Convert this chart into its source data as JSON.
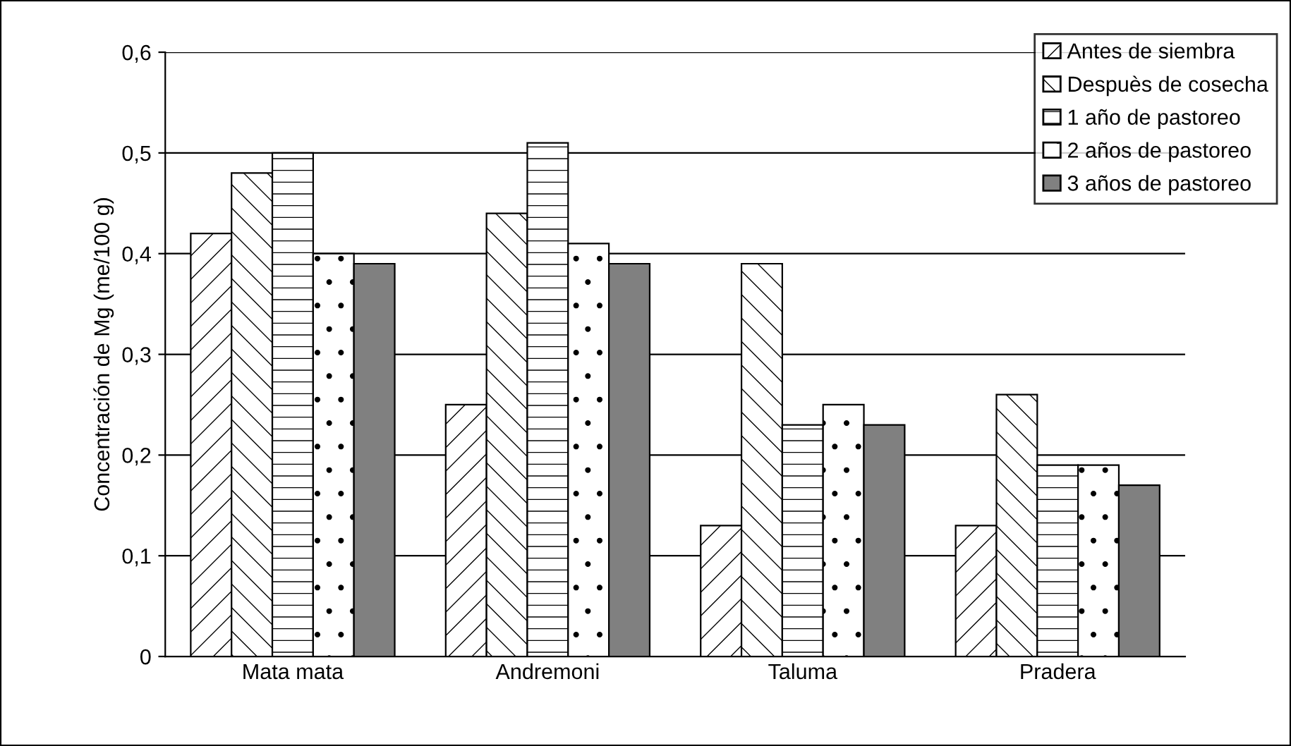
{
  "chart_data": {
    "type": "bar",
    "ylabel": "Concentración de Mg (me/100 g)",
    "categories": [
      "Mata mata",
      "Andremoni",
      "Taluma",
      "Pradera"
    ],
    "series": [
      {
        "name": "Antes de siembra",
        "color": "#ffffff",
        "values": [
          0.42,
          0.25,
          0.13,
          0.13
        ]
      },
      {
        "name": "Despuès de cosecha",
        "color": "#ffffff",
        "values": [
          0.48,
          0.44,
          0.39,
          0.26
        ]
      },
      {
        "name": "1 año de pastoreo",
        "color": "#ffffff",
        "values": [
          0.5,
          0.51,
          0.23,
          0.19
        ]
      },
      {
        "name": "2 años de pastoreo",
        "color": "#ffffff",
        "values": [
          0.4,
          0.41,
          0.25,
          0.19
        ]
      },
      {
        "name": "3 años de pastoreo",
        "color": "#808080",
        "values": [
          0.39,
          0.39,
          0.23,
          0.17
        ]
      }
    ],
    "ylim": [
      0,
      0.6
    ],
    "yticks": [
      0,
      {
        "value": 0.1,
        "label": "0,1"
      },
      {
        "value": 0.2,
        "label": "0,2"
      },
      {
        "value": 0.3,
        "label": "0,3"
      },
      {
        "value": 0.4,
        "label": "0,4"
      },
      {
        "value": 0.5,
        "label": "0,5"
      },
      {
        "value": 0.6,
        "label": "0,6"
      }
    ],
    "grid": "y",
    "legend": "top right"
  }
}
